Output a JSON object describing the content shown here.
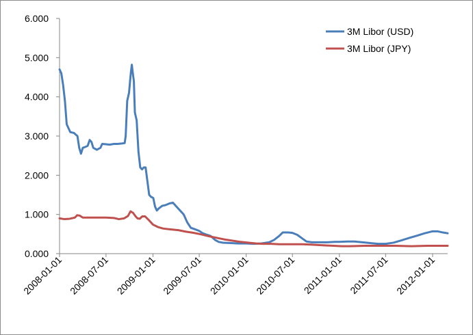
{
  "chart_data": {
    "type": "line",
    "title": "",
    "xlabel": "",
    "ylabel": "",
    "ylim": [
      0,
      6
    ],
    "y_ticks": [
      "0.000",
      "1.000",
      "2.000",
      "3.000",
      "4.000",
      "5.000",
      "6.000"
    ],
    "x_ticks": [
      "2008-01-01",
      "2008-07-01",
      "2009-01-01",
      "2009-07-01",
      "2010-01-01",
      "2010-07-01",
      "2011-01-01",
      "2011-07-01",
      "2012-01-01"
    ],
    "xlim": [
      "2008-01-01",
      "2012-02-29"
    ],
    "grid": false,
    "legend_position": "top-right",
    "series": [
      {
        "name": "3M Libor (USD)",
        "color": "#4a7eba",
        "points": [
          [
            "2008-01-01",
            4.7
          ],
          [
            "2008-01-08",
            4.6
          ],
          [
            "2008-01-15",
            4.3
          ],
          [
            "2008-01-22",
            3.9
          ],
          [
            "2008-01-29",
            3.3
          ],
          [
            "2008-02-05",
            3.2
          ],
          [
            "2008-02-12",
            3.1
          ],
          [
            "2008-02-26",
            3.08
          ],
          [
            "2008-03-11",
            3.0
          ],
          [
            "2008-03-18",
            2.7
          ],
          [
            "2008-03-25",
            2.55
          ],
          [
            "2008-04-01",
            2.7
          ],
          [
            "2008-04-10",
            2.72
          ],
          [
            "2008-04-20",
            2.75
          ],
          [
            "2008-04-28",
            2.9
          ],
          [
            "2008-05-05",
            2.85
          ],
          [
            "2008-05-12",
            2.7
          ],
          [
            "2008-05-26",
            2.65
          ],
          [
            "2008-06-09",
            2.7
          ],
          [
            "2008-06-16",
            2.8
          ],
          [
            "2008-07-01",
            2.79
          ],
          [
            "2008-07-15",
            2.78
          ],
          [
            "2008-08-01",
            2.8
          ],
          [
            "2008-08-15",
            2.8
          ],
          [
            "2008-09-01",
            2.81
          ],
          [
            "2008-09-12",
            2.82
          ],
          [
            "2008-09-16",
            3.0
          ],
          [
            "2008-09-22",
            3.9
          ],
          [
            "2008-09-29",
            4.1
          ],
          [
            "2008-10-06",
            4.6
          ],
          [
            "2008-10-10",
            4.82
          ],
          [
            "2008-10-14",
            4.6
          ],
          [
            "2008-10-18",
            4.4
          ],
          [
            "2008-10-22",
            3.6
          ],
          [
            "2008-10-29",
            3.4
          ],
          [
            "2008-11-05",
            2.6
          ],
          [
            "2008-11-12",
            2.2
          ],
          [
            "2008-11-19",
            2.15
          ],
          [
            "2008-11-26",
            2.2
          ],
          [
            "2008-12-03",
            2.2
          ],
          [
            "2008-12-10",
            1.85
          ],
          [
            "2008-12-17",
            1.5
          ],
          [
            "2008-12-24",
            1.45
          ],
          [
            "2009-01-02",
            1.42
          ],
          [
            "2009-01-09",
            1.2
          ],
          [
            "2009-01-16",
            1.1
          ],
          [
            "2009-01-23",
            1.15
          ],
          [
            "2009-02-06",
            1.22
          ],
          [
            "2009-02-20",
            1.24
          ],
          [
            "2009-03-06",
            1.28
          ],
          [
            "2009-03-20",
            1.3
          ],
          [
            "2009-04-03",
            1.2
          ],
          [
            "2009-04-17",
            1.1
          ],
          [
            "2009-05-01",
            1.0
          ],
          [
            "2009-05-15",
            0.8
          ],
          [
            "2009-05-29",
            0.66
          ],
          [
            "2009-06-15",
            0.62
          ],
          [
            "2009-07-01",
            0.58
          ],
          [
            "2009-07-15",
            0.52
          ],
          [
            "2009-08-01",
            0.48
          ],
          [
            "2009-08-15",
            0.45
          ],
          [
            "2009-09-01",
            0.35
          ],
          [
            "2009-09-15",
            0.3
          ],
          [
            "2009-10-01",
            0.28
          ],
          [
            "2009-11-01",
            0.27
          ],
          [
            "2009-12-01",
            0.26
          ],
          [
            "2010-01-01",
            0.26
          ],
          [
            "2010-02-01",
            0.25
          ],
          [
            "2010-03-01",
            0.26
          ],
          [
            "2010-04-01",
            0.29
          ],
          [
            "2010-04-20",
            0.35
          ],
          [
            "2010-05-10",
            0.45
          ],
          [
            "2010-05-24",
            0.54
          ],
          [
            "2010-06-15",
            0.54
          ],
          [
            "2010-07-01",
            0.53
          ],
          [
            "2010-07-20",
            0.48
          ],
          [
            "2010-08-10",
            0.38
          ],
          [
            "2010-08-25",
            0.31
          ],
          [
            "2010-09-15",
            0.29
          ],
          [
            "2010-10-15",
            0.29
          ],
          [
            "2010-11-15",
            0.29
          ],
          [
            "2010-12-15",
            0.3
          ],
          [
            "2011-01-01",
            0.3
          ],
          [
            "2011-02-01",
            0.31
          ],
          [
            "2011-03-01",
            0.31
          ],
          [
            "2011-04-01",
            0.29
          ],
          [
            "2011-05-01",
            0.27
          ],
          [
            "2011-06-01",
            0.25
          ],
          [
            "2011-07-01",
            0.25
          ],
          [
            "2011-08-01",
            0.28
          ],
          [
            "2011-09-01",
            0.34
          ],
          [
            "2011-10-01",
            0.4
          ],
          [
            "2011-11-01",
            0.46
          ],
          [
            "2011-12-01",
            0.52
          ],
          [
            "2012-01-01",
            0.57
          ],
          [
            "2012-01-20",
            0.57
          ],
          [
            "2012-02-10",
            0.54
          ],
          [
            "2012-02-29",
            0.52
          ]
        ]
      },
      {
        "name": "3M Libor (JPY)",
        "color": "#c0504d",
        "points": [
          [
            "2008-01-01",
            0.9
          ],
          [
            "2008-01-20",
            0.88
          ],
          [
            "2008-02-10",
            0.89
          ],
          [
            "2008-03-01",
            0.92
          ],
          [
            "2008-03-10",
            0.98
          ],
          [
            "2008-03-20",
            0.97
          ],
          [
            "2008-04-01",
            0.92
          ],
          [
            "2008-05-01",
            0.92
          ],
          [
            "2008-06-01",
            0.92
          ],
          [
            "2008-07-01",
            0.92
          ],
          [
            "2008-08-01",
            0.91
          ],
          [
            "2008-08-20",
            0.88
          ],
          [
            "2008-09-10",
            0.9
          ],
          [
            "2008-09-25",
            0.96
          ],
          [
            "2008-10-05",
            1.08
          ],
          [
            "2008-10-15",
            1.04
          ],
          [
            "2008-10-25",
            0.95
          ],
          [
            "2008-11-01",
            0.9
          ],
          [
            "2008-11-10",
            0.89
          ],
          [
            "2008-11-20",
            0.95
          ],
          [
            "2008-12-01",
            0.95
          ],
          [
            "2008-12-15",
            0.86
          ],
          [
            "2009-01-01",
            0.74
          ],
          [
            "2009-01-20",
            0.68
          ],
          [
            "2009-02-10",
            0.64
          ],
          [
            "2009-03-10",
            0.62
          ],
          [
            "2009-04-10",
            0.6
          ],
          [
            "2009-05-10",
            0.56
          ],
          [
            "2009-06-10",
            0.53
          ],
          [
            "2009-07-10",
            0.49
          ],
          [
            "2009-08-10",
            0.44
          ],
          [
            "2009-09-10",
            0.4
          ],
          [
            "2009-10-10",
            0.36
          ],
          [
            "2009-11-10",
            0.33
          ],
          [
            "2009-12-10",
            0.3
          ],
          [
            "2010-01-10",
            0.28
          ],
          [
            "2010-02-10",
            0.26
          ],
          [
            "2010-03-10",
            0.25
          ],
          [
            "2010-04-10",
            0.25
          ],
          [
            "2010-05-10",
            0.24
          ],
          [
            "2010-06-10",
            0.24
          ],
          [
            "2010-07-10",
            0.24
          ],
          [
            "2010-08-10",
            0.24
          ],
          [
            "2010-09-10",
            0.23
          ],
          [
            "2010-10-10",
            0.22
          ],
          [
            "2010-11-10",
            0.21
          ],
          [
            "2010-12-10",
            0.2
          ],
          [
            "2011-01-10",
            0.19
          ],
          [
            "2011-02-10",
            0.19
          ],
          [
            "2011-04-10",
            0.2
          ],
          [
            "2011-06-10",
            0.2
          ],
          [
            "2011-08-10",
            0.2
          ],
          [
            "2011-10-10",
            0.19
          ],
          [
            "2011-12-10",
            0.2
          ],
          [
            "2012-02-29",
            0.2
          ]
        ]
      }
    ]
  }
}
